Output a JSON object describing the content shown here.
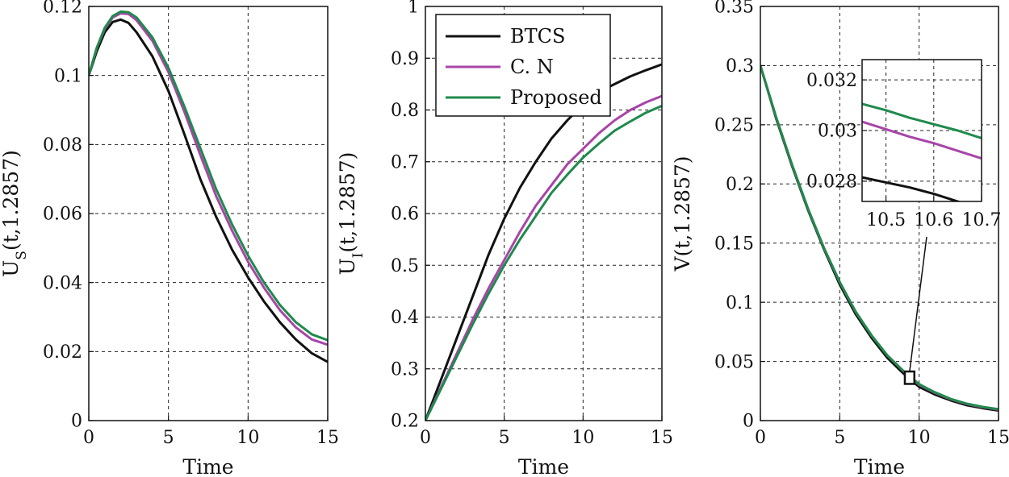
{
  "chart_data": [
    {
      "type": "line",
      "xlabel": "Time",
      "ylabel": "U",
      "ylabel_sub": "S",
      "ylabel_suffix": "(t,1.2857)",
      "xlim": [
        0,
        15
      ],
      "ylim": [
        0,
        0.12
      ],
      "x_ticks": [
        "0",
        "5",
        "10",
        "15"
      ],
      "y_ticks": [
        "0",
        "0.02",
        "0.04",
        "0.06",
        "0.08",
        "0.1",
        "0.12"
      ],
      "grid": true,
      "x": [
        0,
        0.5,
        1,
        1.5,
        2,
        2.5,
        3,
        4,
        5,
        6,
        7,
        8,
        9,
        10,
        11,
        12,
        13,
        14,
        15
      ],
      "series": [
        {
          "name": "BTCS",
          "values": [
            0.1,
            0.107,
            0.1125,
            0.1155,
            0.1162,
            0.1152,
            0.1125,
            0.1055,
            0.0955,
            0.083,
            0.07,
            0.059,
            0.0495,
            0.0415,
            0.0345,
            0.0285,
            0.0235,
            0.0195,
            0.017
          ]
        },
        {
          "name": "C. N",
          "values": [
            0.1,
            0.108,
            0.1135,
            0.1168,
            0.118,
            0.1178,
            0.116,
            0.11,
            0.101,
            0.0895,
            0.077,
            0.065,
            0.055,
            0.046,
            0.0385,
            0.032,
            0.027,
            0.0235,
            0.022
          ]
        },
        {
          "name": "Proposed",
          "values": [
            0.1,
            0.108,
            0.1138,
            0.1172,
            0.1185,
            0.1183,
            0.1168,
            0.111,
            0.1022,
            0.091,
            0.079,
            0.067,
            0.0568,
            0.0478,
            0.04,
            0.0335,
            0.0285,
            0.025,
            0.0233
          ]
        }
      ]
    },
    {
      "type": "line",
      "xlabel": "Time",
      "ylabel": "U",
      "ylabel_sub": "I",
      "ylabel_suffix": "(t,1.2857)",
      "xlim": [
        0,
        15
      ],
      "ylim": [
        0.2,
        1
      ],
      "x_ticks": [
        "0",
        "5",
        "10",
        "15"
      ],
      "y_ticks": [
        "0.2",
        "0.3",
        "0.4",
        "0.5",
        "0.6",
        "0.7",
        "0.8",
        "0.9",
        "1"
      ],
      "grid": true,
      "legend_position": "top-left",
      "x": [
        0,
        1,
        2,
        3,
        4,
        5,
        6,
        7,
        8,
        9,
        10,
        11,
        12,
        13,
        14,
        15
      ],
      "series": [
        {
          "name": "BTCS",
          "values": [
            0.2,
            0.28,
            0.36,
            0.44,
            0.52,
            0.59,
            0.65,
            0.7,
            0.745,
            0.78,
            0.81,
            0.835,
            0.85,
            0.865,
            0.877,
            0.888
          ]
        },
        {
          "name": "C. N",
          "values": [
            0.2,
            0.265,
            0.33,
            0.395,
            0.455,
            0.51,
            0.565,
            0.615,
            0.655,
            0.695,
            0.725,
            0.755,
            0.78,
            0.8,
            0.815,
            0.827
          ]
        },
        {
          "name": "Proposed",
          "values": [
            0.2,
            0.262,
            0.324,
            0.386,
            0.445,
            0.5,
            0.55,
            0.595,
            0.64,
            0.675,
            0.708,
            0.735,
            0.76,
            0.778,
            0.795,
            0.808
          ]
        }
      ]
    },
    {
      "type": "line",
      "xlabel": "Time",
      "ylabel": "V(t,1.2857)",
      "xlim": [
        0,
        15
      ],
      "ylim": [
        0,
        0.35
      ],
      "x_ticks": [
        "0",
        "5",
        "10",
        "15"
      ],
      "y_ticks": [
        "0",
        "0.05",
        "0.1",
        "0.15",
        "0.2",
        "0.25",
        "0.3",
        "0.35"
      ],
      "grid": true,
      "x": [
        0,
        1,
        2,
        3,
        4,
        5,
        6,
        7,
        8,
        9,
        10,
        11,
        12,
        13,
        14,
        15
      ],
      "series": [
        {
          "name": "BTCS",
          "values": [
            0.3,
            0.255,
            0.215,
            0.178,
            0.145,
            0.115,
            0.09,
            0.07,
            0.053,
            0.04,
            0.0285,
            0.022,
            0.017,
            0.013,
            0.0105,
            0.0085
          ]
        },
        {
          "name": "C. N",
          "values": [
            0.3,
            0.256,
            0.216,
            0.179,
            0.146,
            0.117,
            0.092,
            0.072,
            0.055,
            0.042,
            0.0303,
            0.0235,
            0.018,
            0.014,
            0.0113,
            0.0093
          ]
        },
        {
          "name": "Proposed",
          "values": [
            0.3,
            0.256,
            0.216,
            0.179,
            0.146,
            0.117,
            0.092,
            0.072,
            0.055,
            0.042,
            0.0308,
            0.0239,
            0.0183,
            0.0143,
            0.0116,
            0.0096
          ]
        }
      ],
      "inset": {
        "xlim": [
          10.45,
          10.7
        ],
        "ylim": [
          0.0272,
          0.0328
        ],
        "x_ticks": [
          "10.5",
          "10.6",
          "10.7"
        ],
        "y_ticks": [
          "0.028",
          "0.03",
          "0.032"
        ],
        "x": [
          10.45,
          10.5,
          10.55,
          10.6,
          10.65,
          10.7
        ],
        "series": [
          {
            "name": "BTCS",
            "values": [
              0.02815,
              0.02795,
              0.02775,
              0.0275,
              0.0272,
              0.0269
            ]
          },
          {
            "name": "C. N",
            "values": [
              0.03035,
              0.03005,
              0.02975,
              0.0295,
              0.0292,
              0.0289
            ]
          },
          {
            "name": "Proposed",
            "values": [
              0.03105,
              0.0308,
              0.0305,
              0.03025,
              0.03,
              0.0297
            ]
          }
        ]
      }
    }
  ],
  "legend": [
    "BTCS",
    "C. N",
    "Proposed"
  ],
  "colors": {
    "BTCS": "#111111",
    "C. N": "#a845a8",
    "Proposed": "#1f8a4c",
    "grid": "#222222"
  }
}
